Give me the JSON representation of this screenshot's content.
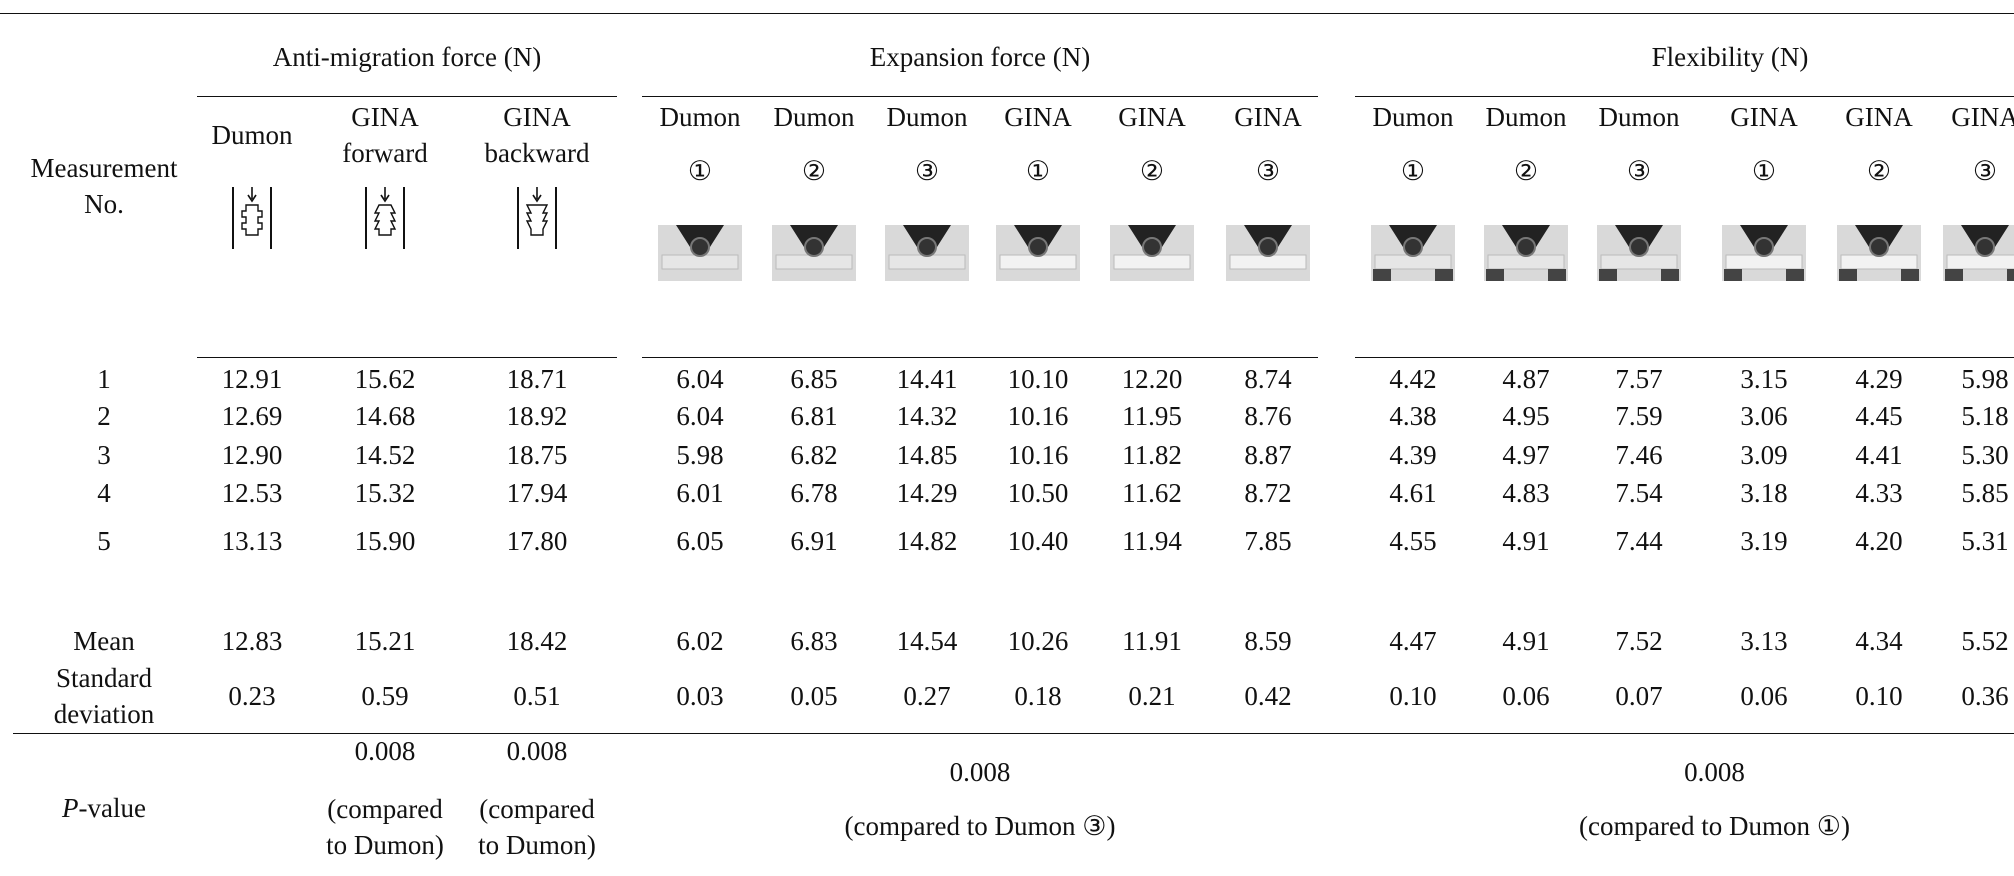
{
  "table": {
    "row_header": "Measurement No.",
    "groups": [
      {
        "title": "Anti-migration force (N)",
        "columns": [
          {
            "name": "Dumon"
          },
          {
            "name": "GINA forward"
          },
          {
            "name": "GINA backward"
          }
        ],
        "p_values": [
          null,
          {
            "value": "0.008",
            "note": "(compared to Dumon)"
          },
          {
            "value": "0.008",
            "note": "(compared to Dumon)"
          }
        ]
      },
      {
        "title": "Expansion force (N)",
        "columns": [
          {
            "name": "Dumon",
            "mark": "①"
          },
          {
            "name": "Dumon",
            "mark": "②"
          },
          {
            "name": "Dumon",
            "mark": "③"
          },
          {
            "name": "GINA",
            "mark": "①"
          },
          {
            "name": "GINA",
            "mark": "②"
          },
          {
            "name": "GINA",
            "mark": "③"
          }
        ],
        "p_value": {
          "value": "0.008",
          "note": "(compared to Dumon ③)"
        }
      },
      {
        "title": "Flexibility (N)",
        "columns": [
          {
            "name": "Dumon",
            "mark": "①"
          },
          {
            "name": "Dumon",
            "mark": "②"
          },
          {
            "name": "Dumon",
            "mark": "③"
          },
          {
            "name": "GINA",
            "mark": "①"
          },
          {
            "name": "GINA",
            "mark": "②"
          },
          {
            "name": "GINA",
            "mark": "③"
          }
        ],
        "p_value": {
          "value": "0.008",
          "note": "(compared to Dumon ①)"
        }
      }
    ],
    "rows": [
      {
        "label": "1",
        "values": [
          "12.91",
          "15.62",
          "18.71",
          "6.04",
          "6.85",
          "14.41",
          "10.10",
          "12.20",
          "8.74",
          "4.42",
          "4.87",
          "7.57",
          "3.15",
          "4.29",
          "5.98"
        ]
      },
      {
        "label": "2",
        "values": [
          "12.69",
          "14.68",
          "18.92",
          "6.04",
          "6.81",
          "14.32",
          "10.16",
          "11.95",
          "8.76",
          "4.38",
          "4.95",
          "7.59",
          "3.06",
          "4.45",
          "5.18"
        ]
      },
      {
        "label": "3",
        "values": [
          "12.90",
          "14.52",
          "18.75",
          "5.98",
          "6.82",
          "14.85",
          "10.16",
          "11.82",
          "8.87",
          "4.39",
          "4.97",
          "7.46",
          "3.09",
          "4.41",
          "5.30"
        ]
      },
      {
        "label": "4",
        "values": [
          "12.53",
          "15.32",
          "17.94",
          "6.01",
          "6.78",
          "14.29",
          "10.50",
          "11.62",
          "8.72",
          "4.61",
          "4.83",
          "7.54",
          "3.18",
          "4.33",
          "5.85"
        ]
      },
      {
        "label": "5",
        "values": [
          "13.13",
          "15.90",
          "17.80",
          "6.05",
          "6.91",
          "14.82",
          "10.40",
          "11.94",
          "7.85",
          "4.55",
          "4.91",
          "7.44",
          "3.19",
          "4.20",
          "5.31"
        ]
      },
      {
        "label": "Mean",
        "values": [
          "12.83",
          "15.21",
          "18.42",
          "6.02",
          "6.83",
          "14.54",
          "10.26",
          "11.91",
          "8.59",
          "4.47",
          "4.91",
          "7.52",
          "3.13",
          "4.34",
          "5.52"
        ]
      },
      {
        "label": "Standard deviation",
        "values": [
          "0.23",
          "0.59",
          "0.51",
          "0.03",
          "0.05",
          "0.27",
          "0.18",
          "0.21",
          "0.42",
          "0.10",
          "0.06",
          "0.07",
          "0.06",
          "0.10",
          "0.36"
        ]
      }
    ],
    "p_label": "P-value"
  }
}
